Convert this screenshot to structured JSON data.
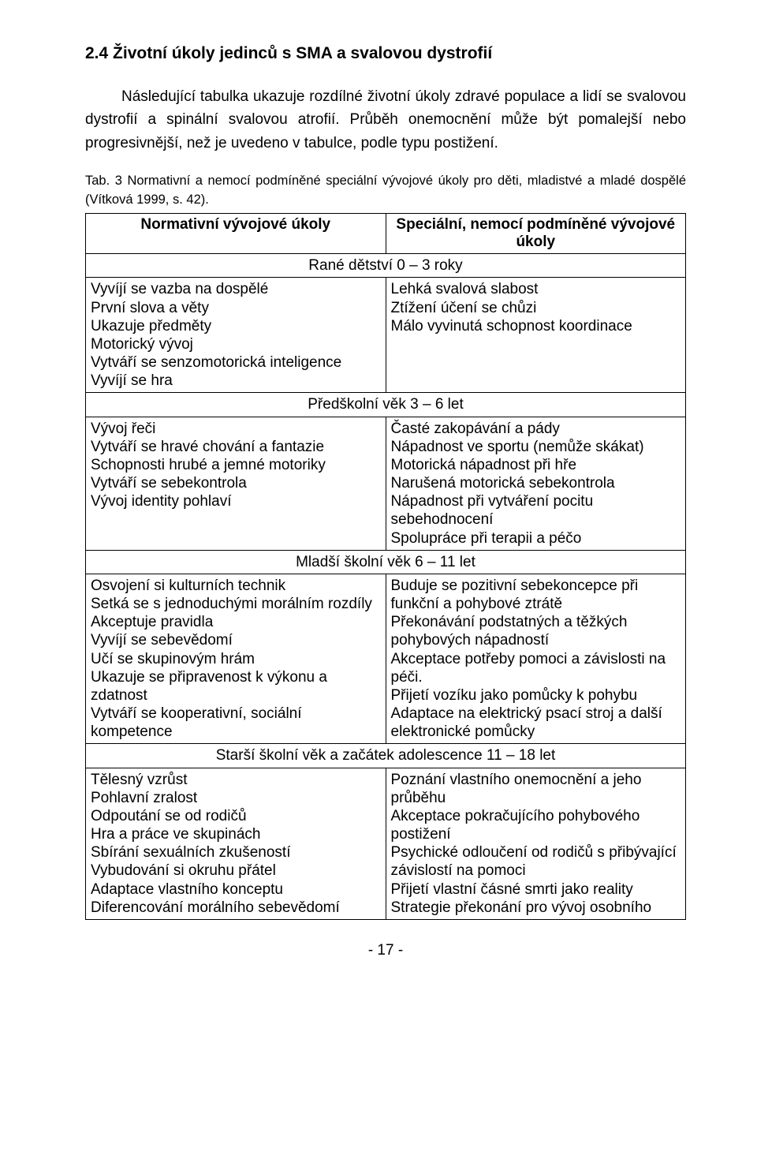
{
  "section_number": "2.4",
  "section_title": "Životní úkoly jedinců s SMA a svalovou dystrofií",
  "para1": "Následující tabulka ukazuje rozdílné životní úkoly zdravé populace a lidí se svalovou dystrofií a spinální svalovou atrofií. Průběh onemocnění může být pomalejší nebo progresivnější, než je uvedeno v tabulce, podle typu postižení.",
  "table_caption": "Tab. 3 Normativní a nemocí podmíněné speciální vývojové úkoly pro děti, mladistvé a mladé dospělé (Vítková 1999, s. 42).",
  "header_left": "Normativní vývojové úkoly",
  "header_right": "Speciální, nemocí podmíněné vývojové úkoly",
  "phases": [
    {
      "title": "Rané dětství 0 – 3 roky",
      "left": "Vyvíjí se vazba na dospělé\nPrvní slova a věty\nUkazuje předměty\nMotorický vývoj\nVytváří se senzomotorická inteligence\nVyvíjí se hra",
      "right": "Lehká svalová slabost\nZtížení účení se chůzi\nMálo vyvinutá schopnost koordinace"
    },
    {
      "title": "Předškolní věk 3 – 6 let",
      "left": "Vývoj řeči\nVytváří se hravé chování a fantazie\nSchopnosti hrubé a jemné motoriky\nVytváří se sebekontrola\nVývoj identity pohlaví",
      "right": "Časté zakopávání a pády\nNápadnost ve sportu (nemůže skákat)\nMotorická nápadnost při hře\nNarušená motorická sebekontrola\nNápadnost při vytváření pocitu sebehodnocení\nSpolupráce při terapii a péčo"
    },
    {
      "title": "Mladší školní věk 6 – 11 let",
      "left": "Osvojení si kulturních technik\nSetká se s jednoduchými morálním rozdíly\nAkceptuje pravidla\nVyvíjí se sebevědomí\nUčí se skupinovým hrám\nUkazuje se připravenost k výkonu a zdatnost\nVytváří se kooperativní, sociální kompetence",
      "right": "Buduje se pozitivní sebekoncepce při funkční a pohybové ztrátě\nPřekonávání podstatných a těžkých pohybových nápadností\nAkceptace potřeby pomoci a závislosti na péči.\nPřijetí vozíku jako pomůcky k pohybu\nAdaptace na elektrický psací stroj a další elektronické pomůcky"
    },
    {
      "title": "Starší školní věk a začátek adolescence 11 – 18  let",
      "left": "Tělesný vzrůst\nPohlavní zralost\nOdpoutání se od rodičů\nHra a práce ve skupinách\nSbírání sexuálních zkušeností\nVybudování si okruhu přátel\nAdaptace vlastního konceptu\nDiferencování morálního sebevědomí",
      "right": "Poznání vlastního onemocnění a jeho průběhu\nAkceptace pokračujícího pohybového postižení\nPsychické odloučení od rodičů s přibývající závislostí na pomoci\nPřijetí vlastní čásné smrti jako reality\nStrategie překonání pro vývoj osobního"
    }
  ],
  "page_num": "- 17 -"
}
